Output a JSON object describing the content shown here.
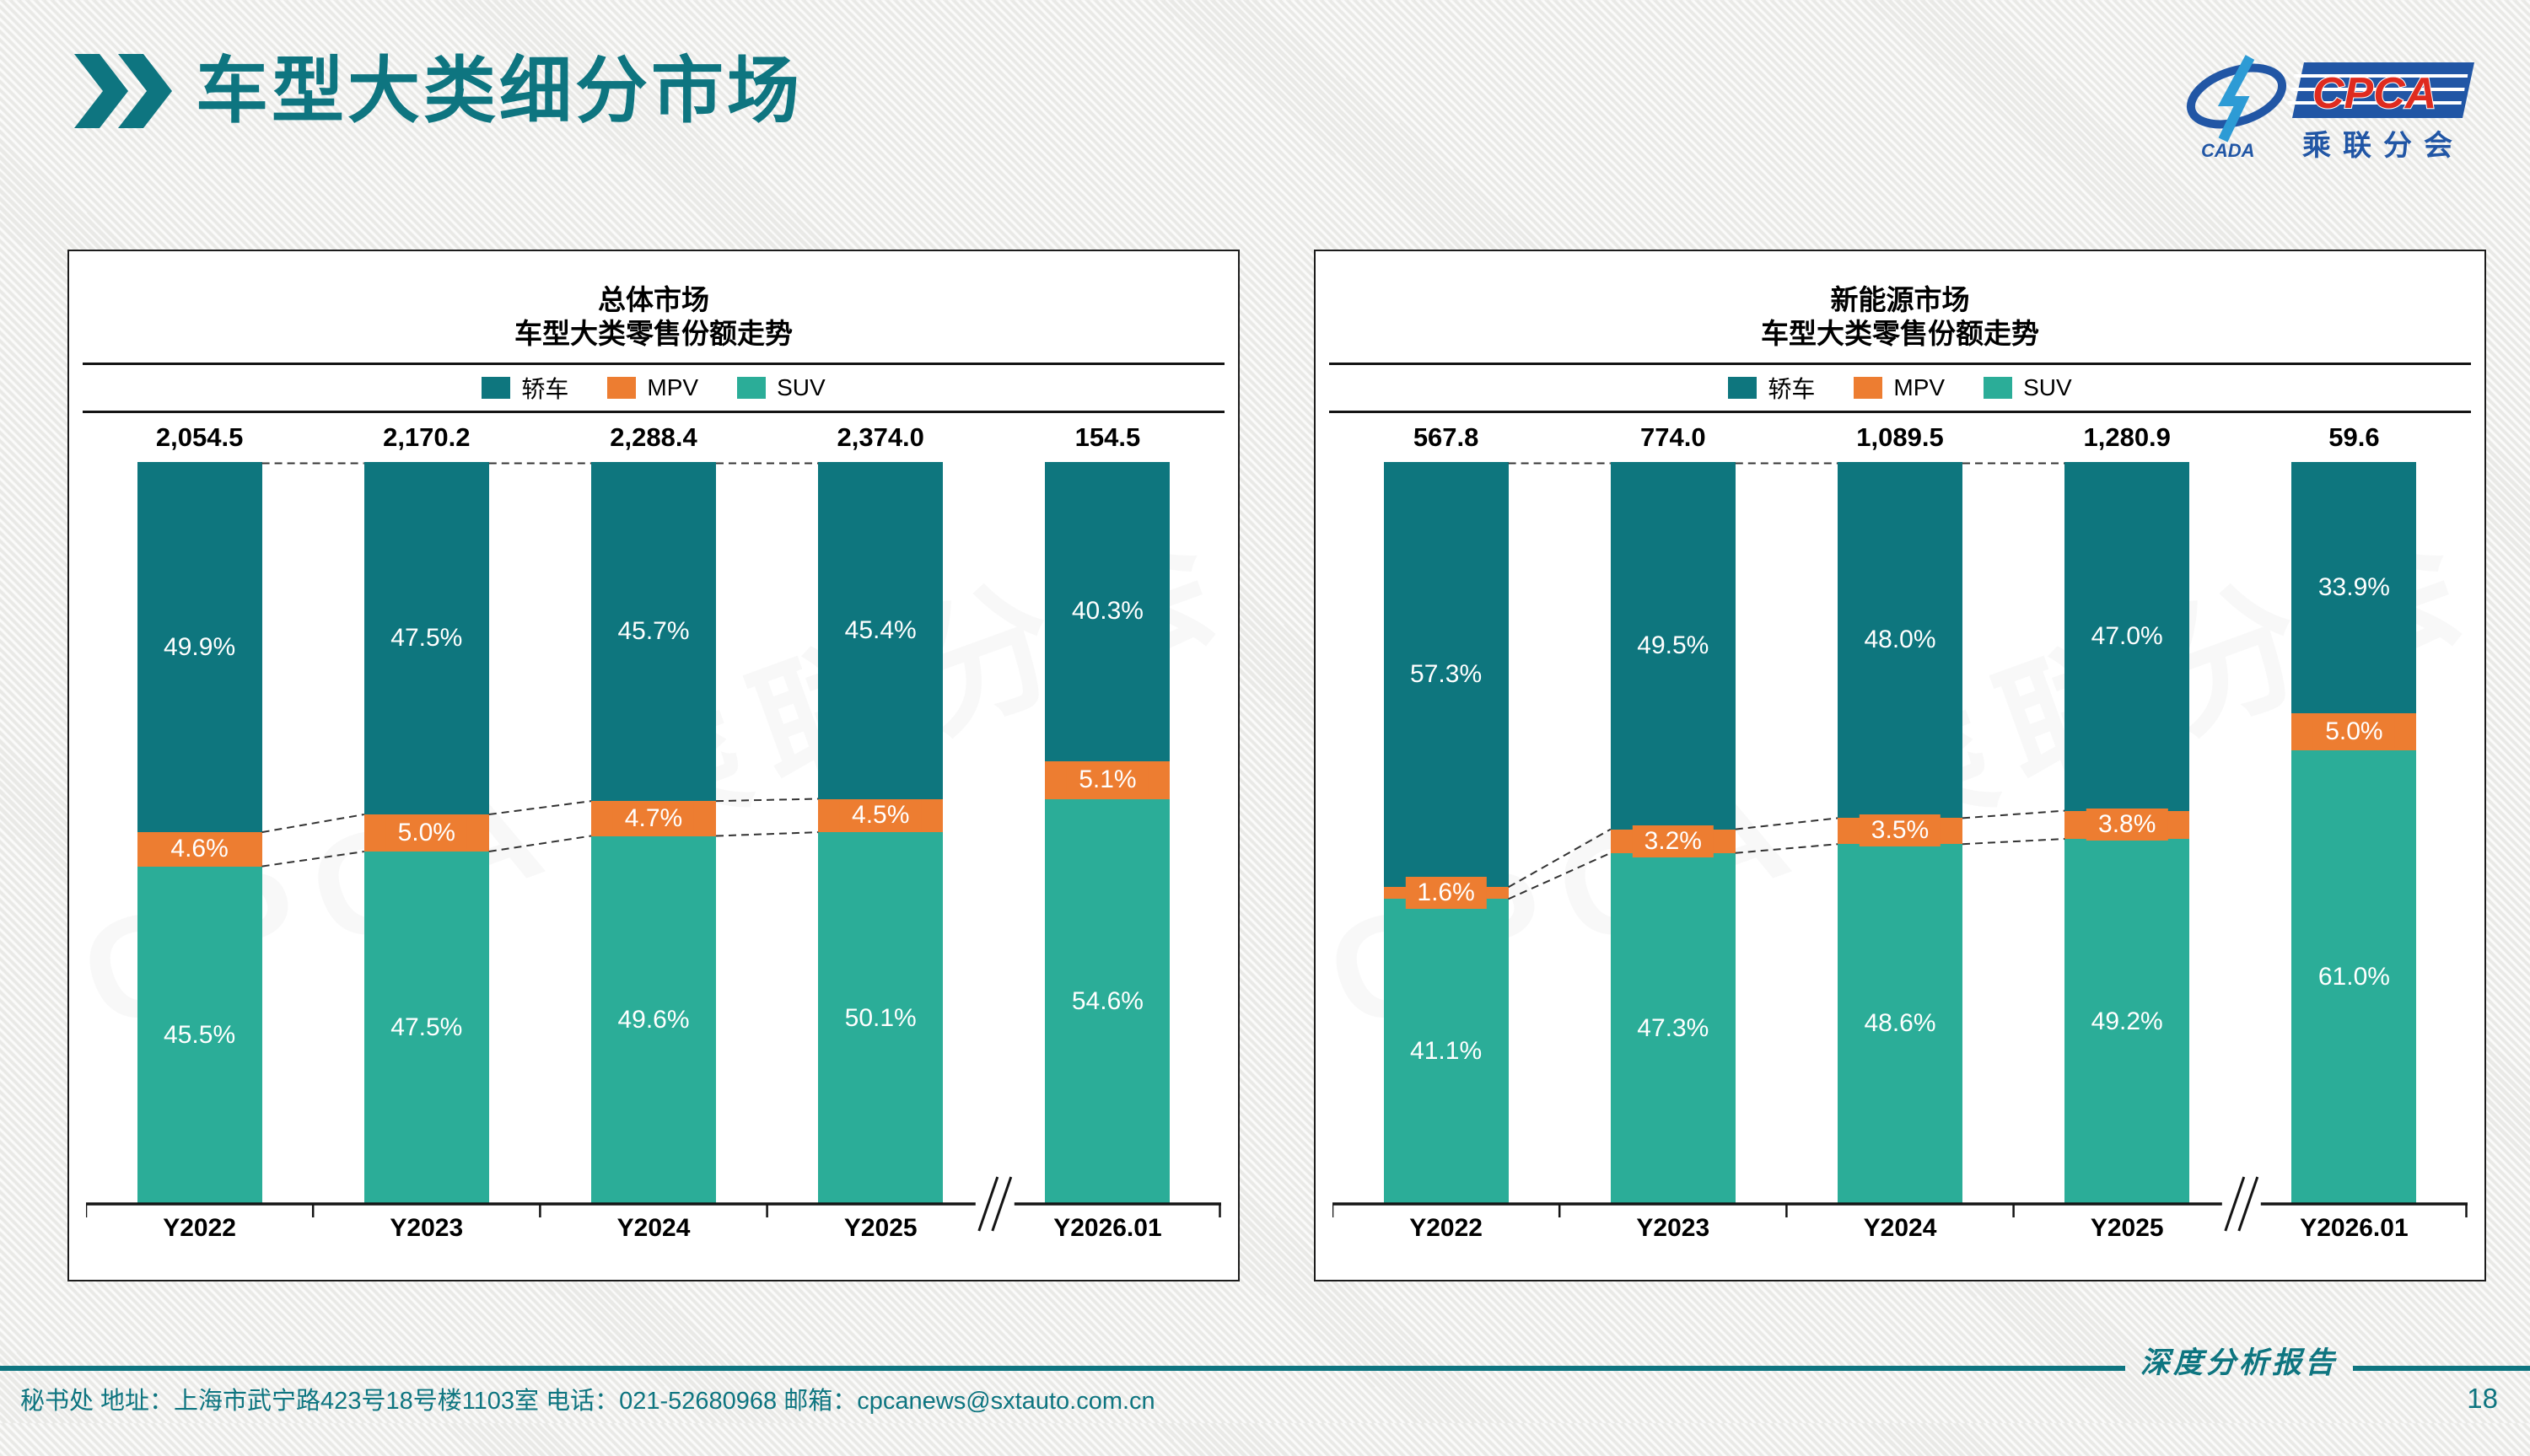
{
  "page": {
    "title": "车型大类细分市场",
    "page_number": "18"
  },
  "logo": {
    "cpca": "CPCA",
    "cada": "CADA",
    "subtitle": "乘联分会"
  },
  "footer": {
    "contact": "秘书处   地址：上海市武宁路423号18号楼1103室  电话：021-52680968   邮箱：cpcanews@sxtauto.com.cn",
    "report_label": "深度分析报告"
  },
  "colors": {
    "accent_teal": "#0E7580",
    "sedan": "#0E767E",
    "mpv": "#ED7D31",
    "suv": "#2BAD98",
    "axis": "#141414",
    "connector": "#333333"
  },
  "watermark_text": "CPCA 乘联分会",
  "chart_data": [
    {
      "type": "bar",
      "stacked": true,
      "title": "总体市场",
      "subtitle": "车型大类零售份额走势",
      "unit": "%",
      "ylim": [
        0,
        100
      ],
      "grid": false,
      "legend_position": "top",
      "axis_break_between": [
        "Y2025",
        "Y2026.01"
      ],
      "categories": [
        "Y2022",
        "Y2023",
        "Y2024",
        "Y2025",
        "Y2026.01"
      ],
      "totals": [
        "2,054.5",
        "2,170.2",
        "2,288.4",
        "2,374.0",
        "154.5"
      ],
      "series": [
        {
          "name": "轿车",
          "key": "sedan",
          "color": "#0E767E",
          "values": [
            49.9,
            47.5,
            45.7,
            45.4,
            40.3
          ]
        },
        {
          "name": "MPV",
          "key": "mpv",
          "color": "#ED7D31",
          "values": [
            4.6,
            5.0,
            4.7,
            4.5,
            5.1
          ]
        },
        {
          "name": "SUV",
          "key": "suv",
          "color": "#2BAD98",
          "values": [
            45.5,
            47.5,
            49.6,
            50.1,
            54.6
          ]
        }
      ]
    },
    {
      "type": "bar",
      "stacked": true,
      "title": "新能源市场",
      "subtitle": "车型大类零售份额走势",
      "unit": "%",
      "ylim": [
        0,
        100
      ],
      "grid": false,
      "legend_position": "top",
      "axis_break_between": [
        "Y2025",
        "Y2026.01"
      ],
      "categories": [
        "Y2022",
        "Y2023",
        "Y2024",
        "Y2025",
        "Y2026.01"
      ],
      "totals": [
        "567.8",
        "774.0",
        "1,089.5",
        "1,280.9",
        "59.6"
      ],
      "series": [
        {
          "name": "轿车",
          "key": "sedan",
          "color": "#0E767E",
          "values": [
            57.3,
            49.5,
            48.0,
            47.0,
            33.9
          ]
        },
        {
          "name": "MPV",
          "key": "mpv",
          "color": "#ED7D31",
          "values": [
            1.6,
            3.2,
            3.5,
            3.8,
            5.0
          ]
        },
        {
          "name": "SUV",
          "key": "suv",
          "color": "#2BAD98",
          "values": [
            41.1,
            47.3,
            48.6,
            49.2,
            61.0
          ]
        }
      ]
    }
  ]
}
